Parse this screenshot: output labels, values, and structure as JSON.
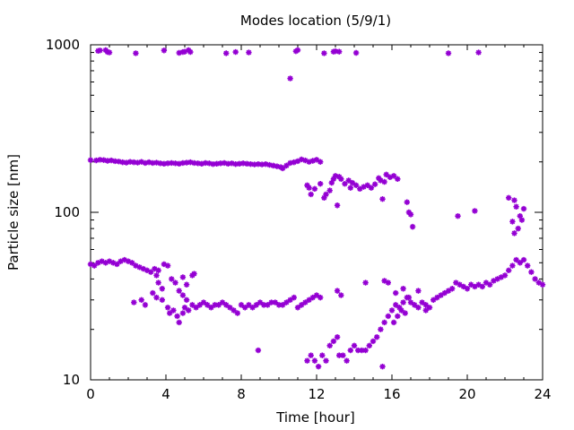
{
  "chart_data": {
    "type": "scatter",
    "title": "Modes location (5/9/1)",
    "xlabel": "Time [hour]",
    "ylabel": "Particle size [nm]",
    "xlim": [
      0,
      24
    ],
    "ylim": [
      10,
      1000
    ],
    "yscale": "log",
    "x_ticks": [
      "0",
      "4",
      "8",
      "12",
      "16",
      "20",
      "24"
    ],
    "y_ticks": [
      "10",
      "100",
      "1000"
    ],
    "grid": false,
    "marker": "star",
    "color": "#9400d3",
    "series": [
      {
        "points": [
          [
            0.4,
            920
          ],
          [
            0.5,
            925
          ],
          [
            0.8,
            930
          ],
          [
            0.9,
            905
          ],
          [
            1.0,
            900
          ],
          [
            2.4,
            890
          ],
          [
            3.9,
            925
          ],
          [
            4.7,
            895
          ],
          [
            4.9,
            905
          ],
          [
            5.0,
            910
          ],
          [
            5.2,
            930
          ],
          [
            5.3,
            905
          ],
          [
            7.2,
            890
          ],
          [
            7.7,
            905
          ],
          [
            8.4,
            900
          ],
          [
            10.6,
            630
          ],
          [
            10.9,
            915
          ],
          [
            11.0,
            930
          ],
          [
            12.4,
            890
          ],
          [
            12.9,
            910
          ],
          [
            13.0,
            915
          ],
          [
            13.2,
            910
          ],
          [
            14.1,
            895
          ],
          [
            19.0,
            890
          ],
          [
            20.6,
            900
          ],
          [
            0.0,
            205
          ],
          [
            0.3,
            204
          ],
          [
            0.5,
            206
          ],
          [
            0.7,
            205
          ],
          [
            0.9,
            203
          ],
          [
            1.1,
            204
          ],
          [
            1.3,
            202
          ],
          [
            1.5,
            201
          ],
          [
            1.7,
            199
          ],
          [
            1.9,
            198
          ],
          [
            2.1,
            200
          ],
          [
            2.3,
            199
          ],
          [
            2.5,
            198
          ],
          [
            2.7,
            200
          ],
          [
            2.9,
            197
          ],
          [
            3.1,
            199
          ],
          [
            3.3,
            197
          ],
          [
            3.5,
            198
          ],
          [
            3.7,
            196
          ],
          [
            3.9,
            195
          ],
          [
            4.1,
            196
          ],
          [
            4.3,
            197
          ],
          [
            4.5,
            196
          ],
          [
            4.7,
            195
          ],
          [
            4.9,
            197
          ],
          [
            5.1,
            198
          ],
          [
            5.3,
            199
          ],
          [
            5.5,
            197
          ],
          [
            5.7,
            196
          ],
          [
            5.9,
            195
          ],
          [
            6.1,
            197
          ],
          [
            6.3,
            196
          ],
          [
            6.5,
            194
          ],
          [
            6.7,
            195
          ],
          [
            6.9,
            196
          ],
          [
            7.1,
            197
          ],
          [
            7.3,
            195
          ],
          [
            7.5,
            196
          ],
          [
            7.7,
            194
          ],
          [
            7.9,
            195
          ],
          [
            8.1,
            196
          ],
          [
            8.3,
            195
          ],
          [
            8.5,
            194
          ],
          [
            8.7,
            193
          ],
          [
            8.9,
            194
          ],
          [
            9.1,
            193
          ],
          [
            9.3,
            194
          ],
          [
            9.5,
            192
          ],
          [
            9.7,
            190
          ],
          [
            9.9,
            188
          ],
          [
            10.1,
            186
          ],
          [
            10.2,
            183
          ],
          [
            10.4,
            190
          ],
          [
            10.6,
            197
          ],
          [
            10.8,
            199
          ],
          [
            11.0,
            202
          ],
          [
            11.2,
            207
          ],
          [
            11.4,
            204
          ],
          [
            11.6,
            200
          ],
          [
            11.8,
            203
          ],
          [
            12.0,
            206
          ],
          [
            12.2,
            200
          ],
          [
            11.5,
            145
          ],
          [
            11.6,
            140
          ],
          [
            11.7,
            128
          ],
          [
            11.9,
            138
          ],
          [
            12.2,
            148
          ],
          [
            12.4,
            122
          ],
          [
            12.5,
            128
          ],
          [
            12.7,
            135
          ],
          [
            12.8,
            150
          ],
          [
            12.9,
            158
          ],
          [
            13.0,
            165
          ],
          [
            13.1,
            110
          ],
          [
            13.2,
            163
          ],
          [
            13.3,
            158
          ],
          [
            13.5,
            148
          ],
          [
            13.7,
            155
          ],
          [
            13.8,
            140
          ],
          [
            13.9,
            150
          ],
          [
            14.1,
            145
          ],
          [
            14.3,
            138
          ],
          [
            14.5,
            142
          ],
          [
            14.7,
            145
          ],
          [
            14.9,
            140
          ],
          [
            15.1,
            147
          ],
          [
            15.3,
            160
          ],
          [
            15.4,
            155
          ],
          [
            15.6,
            152
          ],
          [
            15.7,
            168
          ],
          [
            15.9,
            162
          ],
          [
            16.1,
            165
          ],
          [
            16.3,
            158
          ],
          [
            15.5,
            120
          ],
          [
            16.8,
            115
          ],
          [
            16.9,
            100
          ],
          [
            17.0,
            97
          ],
          [
            17.1,
            82
          ],
          [
            19.5,
            95
          ],
          [
            20.4,
            102
          ],
          [
            22.2,
            122
          ],
          [
            22.5,
            118
          ],
          [
            22.6,
            108
          ],
          [
            22.4,
            88
          ],
          [
            22.5,
            75
          ],
          [
            22.7,
            80
          ],
          [
            22.8,
            95
          ],
          [
            22.9,
            90
          ],
          [
            23.0,
            105
          ],
          [
            0.0,
            49
          ],
          [
            0.2,
            48
          ],
          [
            0.4,
            50
          ],
          [
            0.6,
            51
          ],
          [
            0.8,
            50
          ],
          [
            1.0,
            51
          ],
          [
            1.2,
            50
          ],
          [
            1.4,
            49
          ],
          [
            1.6,
            51
          ],
          [
            1.8,
            52
          ],
          [
            2.0,
            51
          ],
          [
            2.2,
            50
          ],
          [
            2.4,
            48
          ],
          [
            2.6,
            47
          ],
          [
            2.8,
            46
          ],
          [
            3.0,
            45
          ],
          [
            3.2,
            44
          ],
          [
            3.4,
            46
          ],
          [
            3.6,
            45
          ],
          [
            3.9,
            49
          ],
          [
            4.1,
            48
          ],
          [
            3.5,
            42
          ],
          [
            3.6,
            38
          ],
          [
            3.8,
            35
          ],
          [
            4.3,
            40
          ],
          [
            4.5,
            38
          ],
          [
            4.9,
            41
          ],
          [
            5.1,
            37
          ],
          [
            5.4,
            42
          ],
          [
            5.5,
            43
          ],
          [
            4.7,
            34
          ],
          [
            4.9,
            32
          ],
          [
            5.1,
            30
          ],
          [
            2.3,
            29
          ],
          [
            2.7,
            30
          ],
          [
            2.9,
            28
          ],
          [
            3.3,
            33
          ],
          [
            3.5,
            31
          ],
          [
            3.8,
            30
          ],
          [
            4.1,
            27
          ],
          [
            4.2,
            25
          ],
          [
            4.4,
            26
          ],
          [
            4.6,
            24
          ],
          [
            4.7,
            22
          ],
          [
            4.9,
            25
          ],
          [
            5.0,
            27
          ],
          [
            5.2,
            26
          ],
          [
            5.4,
            28
          ],
          [
            5.6,
            27
          ],
          [
            5.8,
            28
          ],
          [
            6.0,
            29
          ],
          [
            6.2,
            28
          ],
          [
            6.4,
            27
          ],
          [
            6.6,
            28
          ],
          [
            6.8,
            28
          ],
          [
            7.0,
            29
          ],
          [
            7.2,
            28
          ],
          [
            7.4,
            27
          ],
          [
            7.6,
            26
          ],
          [
            7.8,
            25
          ],
          [
            8.0,
            28
          ],
          [
            8.2,
            27
          ],
          [
            8.4,
            28
          ],
          [
            8.6,
            27
          ],
          [
            8.8,
            28
          ],
          [
            9.0,
            29
          ],
          [
            9.2,
            28
          ],
          [
            9.4,
            28
          ],
          [
            9.6,
            29
          ],
          [
            9.8,
            29
          ],
          [
            10.0,
            28
          ],
          [
            10.2,
            28
          ],
          [
            10.4,
            29
          ],
          [
            10.6,
            30
          ],
          [
            10.8,
            31
          ],
          [
            11.0,
            27
          ],
          [
            11.2,
            28
          ],
          [
            11.4,
            29
          ],
          [
            11.6,
            30
          ],
          [
            11.8,
            31
          ],
          [
            12.0,
            32
          ],
          [
            12.2,
            31
          ],
          [
            13.1,
            34
          ],
          [
            13.3,
            32
          ],
          [
            8.9,
            15
          ],
          [
            11.5,
            13
          ],
          [
            11.7,
            14
          ],
          [
            11.9,
            13
          ],
          [
            12.1,
            12
          ],
          [
            12.3,
            14
          ],
          [
            12.5,
            13
          ],
          [
            12.7,
            16
          ],
          [
            12.9,
            17
          ],
          [
            13.1,
            18
          ],
          [
            13.2,
            14
          ],
          [
            13.4,
            14
          ],
          [
            13.6,
            13
          ],
          [
            13.8,
            15
          ],
          [
            14.0,
            16
          ],
          [
            14.2,
            15
          ],
          [
            14.4,
            15
          ],
          [
            14.6,
            15
          ],
          [
            14.8,
            16
          ],
          [
            15.0,
            17
          ],
          [
            15.2,
            18
          ],
          [
            15.4,
            20
          ],
          [
            15.5,
            12
          ],
          [
            15.6,
            22
          ],
          [
            15.8,
            24
          ],
          [
            16.0,
            26
          ],
          [
            16.2,
            28
          ],
          [
            16.4,
            27
          ],
          [
            16.6,
            29
          ],
          [
            16.8,
            31
          ],
          [
            17.0,
            29
          ],
          [
            17.2,
            28
          ],
          [
            17.4,
            27
          ],
          [
            17.6,
            29
          ],
          [
            17.8,
            28
          ],
          [
            18.0,
            27
          ],
          [
            18.2,
            30
          ],
          [
            18.4,
            31
          ],
          [
            18.6,
            32
          ],
          [
            18.8,
            33
          ],
          [
            19.0,
            34
          ],
          [
            19.2,
            35
          ],
          [
            19.4,
            38
          ],
          [
            19.6,
            37
          ],
          [
            19.8,
            36
          ],
          [
            20.0,
            35
          ],
          [
            20.2,
            37
          ],
          [
            20.4,
            36
          ],
          [
            20.6,
            37
          ],
          [
            20.8,
            36
          ],
          [
            21.0,
            38
          ],
          [
            21.2,
            37
          ],
          [
            21.4,
            39
          ],
          [
            21.6,
            40
          ],
          [
            21.8,
            41
          ],
          [
            22.0,
            42
          ],
          [
            22.2,
            45
          ],
          [
            22.4,
            48
          ],
          [
            22.6,
            52
          ],
          [
            22.8,
            50
          ],
          [
            23.0,
            52
          ],
          [
            23.2,
            48
          ],
          [
            23.4,
            44
          ],
          [
            23.6,
            40
          ],
          [
            23.8,
            38
          ],
          [
            24.0,
            37
          ],
          [
            15.6,
            39
          ],
          [
            15.8,
            38
          ],
          [
            16.2,
            33
          ],
          [
            16.6,
            35
          ],
          [
            16.9,
            31
          ],
          [
            17.4,
            34
          ],
          [
            17.8,
            26
          ],
          [
            14.6,
            38
          ],
          [
            16.1,
            22
          ],
          [
            16.3,
            24
          ],
          [
            16.5,
            26
          ],
          [
            16.7,
            25
          ]
        ]
      }
    ]
  }
}
